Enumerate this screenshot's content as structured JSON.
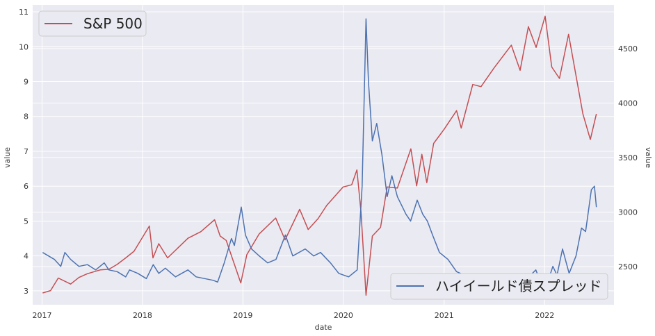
{
  "chart_data": {
    "type": "line",
    "title": "",
    "xlabel": "date",
    "ylabel_left": "value",
    "ylabel_right": "value",
    "x_ticks": [
      "2017",
      "2018",
      "2019",
      "2020",
      "2021",
      "2022"
    ],
    "x_range": [
      "2016-11-28",
      "2022-09-10"
    ],
    "left_ylim": [
      2.6,
      11.2
    ],
    "left_yticks": [
      3,
      4,
      5,
      6,
      7,
      8,
      9,
      10,
      11
    ],
    "right_ylim": [
      2150,
      4900
    ],
    "right_yticks": [
      2500,
      3000,
      3500,
      4000,
      4500
    ],
    "grid": true,
    "background": "#eaeaf2",
    "series": [
      {
        "name": "S&P 500",
        "axis": "right",
        "color": "#c44e52",
        "legend_position": "top-left",
        "points": [
          [
            "2017-01-03",
            2258
          ],
          [
            "2017-02-01",
            2280
          ],
          [
            "2017-03-01",
            2395
          ],
          [
            "2017-04-15",
            2340
          ],
          [
            "2017-05-15",
            2400
          ],
          [
            "2017-06-15",
            2435
          ],
          [
            "2017-08-01",
            2470
          ],
          [
            "2017-09-01",
            2475
          ],
          [
            "2017-10-01",
            2520
          ],
          [
            "2017-11-01",
            2580
          ],
          [
            "2017-12-01",
            2640
          ],
          [
            "2018-01-26",
            2872
          ],
          [
            "2018-02-08",
            2580
          ],
          [
            "2018-03-01",
            2710
          ],
          [
            "2018-04-02",
            2580
          ],
          [
            "2018-05-01",
            2650
          ],
          [
            "2018-06-15",
            2760
          ],
          [
            "2018-08-01",
            2820
          ],
          [
            "2018-09-20",
            2930
          ],
          [
            "2018-10-10",
            2780
          ],
          [
            "2018-11-01",
            2740
          ],
          [
            "2018-12-24",
            2350
          ],
          [
            "2019-01-15",
            2610
          ],
          [
            "2019-03-01",
            2800
          ],
          [
            "2019-04-30",
            2945
          ],
          [
            "2019-06-03",
            2745
          ],
          [
            "2019-07-26",
            3025
          ],
          [
            "2019-08-26",
            2840
          ],
          [
            "2019-10-01",
            2940
          ],
          [
            "2019-11-01",
            3060
          ],
          [
            "2019-12-31",
            3230
          ],
          [
            "2020-01-31",
            3250
          ],
          [
            "2020-02-19",
            3386
          ],
          [
            "2020-03-05",
            3000
          ],
          [
            "2020-03-23",
            2237
          ],
          [
            "2020-04-15",
            2780
          ],
          [
            "2020-05-15",
            2860
          ],
          [
            "2020-06-08",
            3230
          ],
          [
            "2020-07-15",
            3220
          ],
          [
            "2020-09-02",
            3580
          ],
          [
            "2020-09-23",
            3240
          ],
          [
            "2020-10-12",
            3530
          ],
          [
            "2020-10-30",
            3270
          ],
          [
            "2020-11-24",
            3630
          ],
          [
            "2020-12-31",
            3756
          ],
          [
            "2021-02-15",
            3930
          ],
          [
            "2021-03-04",
            3770
          ],
          [
            "2021-04-15",
            4170
          ],
          [
            "2021-05-15",
            4150
          ],
          [
            "2021-07-01",
            4320
          ],
          [
            "2021-09-02",
            4530
          ],
          [
            "2021-10-04",
            4300
          ],
          [
            "2021-11-03",
            4700
          ],
          [
            "2021-12-01",
            4510
          ],
          [
            "2022-01-03",
            4796
          ],
          [
            "2022-01-27",
            4330
          ],
          [
            "2022-02-24",
            4225
          ],
          [
            "2022-03-29",
            4630
          ],
          [
            "2022-05-20",
            3900
          ],
          [
            "2022-06-16",
            3666
          ],
          [
            "2022-07-08",
            3900
          ]
        ]
      },
      {
        "name": "ハイイールド債スプレッド",
        "axis": "left",
        "color": "#4c72b0",
        "legend_position": "bottom-right",
        "points": [
          [
            "2017-01-03",
            4.1
          ],
          [
            "2017-02-15",
            3.9
          ],
          [
            "2017-03-10",
            3.7
          ],
          [
            "2017-03-25",
            4.1
          ],
          [
            "2017-04-15",
            3.9
          ],
          [
            "2017-05-15",
            3.7
          ],
          [
            "2017-06-15",
            3.75
          ],
          [
            "2017-07-15",
            3.6
          ],
          [
            "2017-08-15",
            3.8
          ],
          [
            "2017-09-01",
            3.6
          ],
          [
            "2017-10-01",
            3.55
          ],
          [
            "2017-11-01",
            3.4
          ],
          [
            "2017-11-15",
            3.6
          ],
          [
            "2017-12-15",
            3.5
          ],
          [
            "2018-01-15",
            3.35
          ],
          [
            "2018-02-09",
            3.75
          ],
          [
            "2018-03-01",
            3.5
          ],
          [
            "2018-03-25",
            3.65
          ],
          [
            "2018-05-01",
            3.4
          ],
          [
            "2018-06-15",
            3.6
          ],
          [
            "2018-07-15",
            3.4
          ],
          [
            "2018-08-15",
            3.35
          ],
          [
            "2018-09-15",
            3.3
          ],
          [
            "2018-10-01",
            3.25
          ],
          [
            "2018-10-25",
            3.8
          ],
          [
            "2018-11-20",
            4.5
          ],
          [
            "2018-12-01",
            4.3
          ],
          [
            "2018-12-26",
            5.4
          ],
          [
            "2019-01-10",
            4.6
          ],
          [
            "2019-02-01",
            4.2
          ],
          [
            "2019-03-01",
            4.0
          ],
          [
            "2019-04-01",
            3.8
          ],
          [
            "2019-05-01",
            3.9
          ],
          [
            "2019-06-04",
            4.6
          ],
          [
            "2019-07-01",
            4.0
          ],
          [
            "2019-08-15",
            4.2
          ],
          [
            "2019-09-15",
            4.0
          ],
          [
            "2019-10-10",
            4.1
          ],
          [
            "2019-11-15",
            3.8
          ],
          [
            "2019-12-15",
            3.5
          ],
          [
            "2020-01-20",
            3.4
          ],
          [
            "2020-02-20",
            3.6
          ],
          [
            "2020-03-09",
            6.0
          ],
          [
            "2020-03-23",
            10.8
          ],
          [
            "2020-04-01",
            9.0
          ],
          [
            "2020-04-15",
            7.3
          ],
          [
            "2020-05-01",
            7.8
          ],
          [
            "2020-05-20",
            6.9
          ],
          [
            "2020-06-08",
            5.7
          ],
          [
            "2020-06-25",
            6.3
          ],
          [
            "2020-07-15",
            5.7
          ],
          [
            "2020-08-15",
            5.2
          ],
          [
            "2020-09-01",
            5.0
          ],
          [
            "2020-09-25",
            5.6
          ],
          [
            "2020-10-15",
            5.2
          ],
          [
            "2020-11-01",
            5.0
          ],
          [
            "2020-11-20",
            4.6
          ],
          [
            "2020-12-15",
            4.1
          ],
          [
            "2021-01-15",
            3.9
          ],
          [
            "2021-02-15",
            3.55
          ],
          [
            "2021-03-15",
            3.45
          ],
          [
            "2021-04-15",
            3.35
          ],
          [
            "2021-05-15",
            3.2
          ],
          [
            "2021-06-30",
            3.0
          ],
          [
            "2021-07-15",
            3.2
          ],
          [
            "2021-09-15",
            3.0
          ],
          [
            "2021-10-15",
            3.1
          ],
          [
            "2021-11-05",
            3.4
          ],
          [
            "2021-11-30",
            3.6
          ],
          [
            "2021-12-15",
            3.3
          ],
          [
            "2022-01-10",
            3.2
          ],
          [
            "2022-01-31",
            3.7
          ],
          [
            "2022-02-15",
            3.45
          ],
          [
            "2022-03-07",
            4.2
          ],
          [
            "2022-03-31",
            3.5
          ],
          [
            "2022-04-25",
            4.0
          ],
          [
            "2022-05-15",
            4.8
          ],
          [
            "2022-05-30",
            4.7
          ],
          [
            "2022-06-20",
            5.9
          ],
          [
            "2022-07-01",
            6.0
          ],
          [
            "2022-07-08",
            5.4
          ]
        ]
      }
    ]
  }
}
